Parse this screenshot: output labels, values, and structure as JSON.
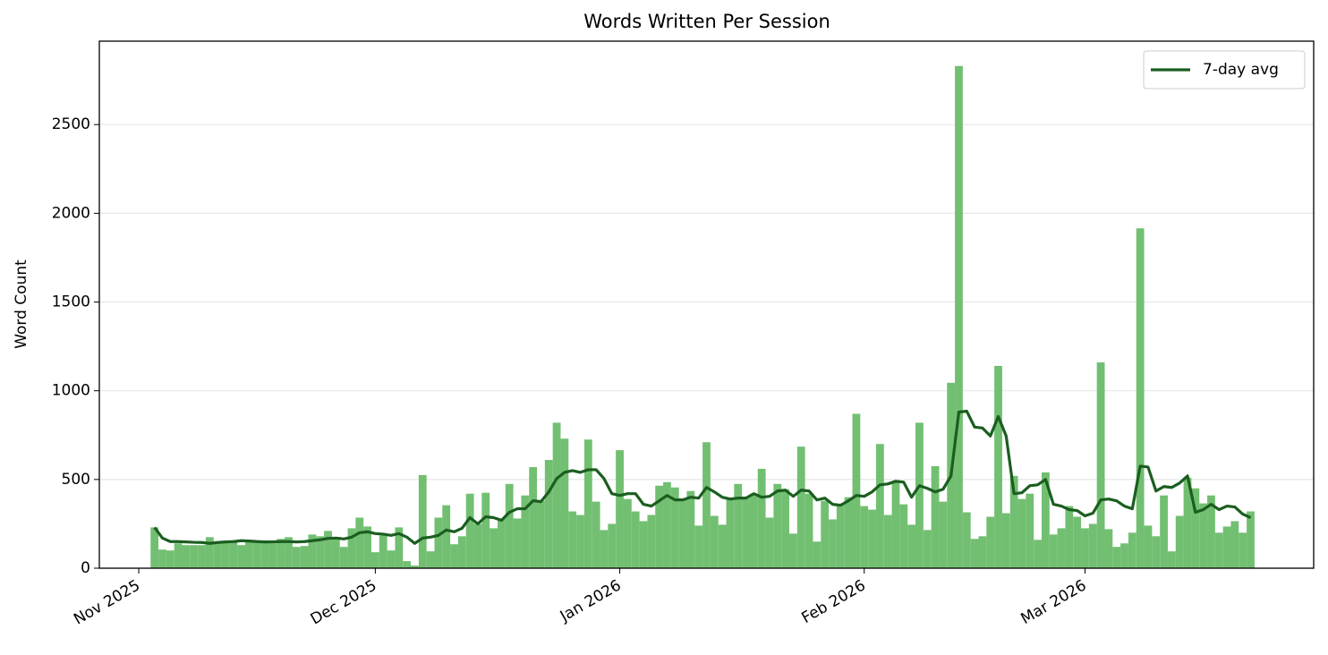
{
  "chart_data": {
    "type": "bar",
    "title": "Words Written Per Session",
    "ylabel": "Word Count",
    "x": [
      "2025-11-03",
      "2025-11-04",
      "2025-11-05",
      "2025-11-06",
      "2025-11-07",
      "2025-11-08",
      "2025-11-09",
      "2025-11-10",
      "2025-11-11",
      "2025-11-12",
      "2025-11-13",
      "2025-11-14",
      "2025-11-15",
      "2025-11-16",
      "2025-11-17",
      "2025-11-18",
      "2025-11-19",
      "2025-11-20",
      "2025-11-21",
      "2025-11-22",
      "2025-11-23",
      "2025-11-24",
      "2025-11-25",
      "2025-11-26",
      "2025-11-27",
      "2025-11-28",
      "2025-11-29",
      "2025-11-30",
      "2025-12-01",
      "2025-12-02",
      "2025-12-03",
      "2025-12-04",
      "2025-12-05",
      "2025-12-06",
      "2025-12-07",
      "2025-12-08",
      "2025-12-09",
      "2025-12-10",
      "2025-12-11",
      "2025-12-12",
      "2025-12-13",
      "2025-12-14",
      "2025-12-15",
      "2025-12-16",
      "2025-12-17",
      "2025-12-18",
      "2025-12-19",
      "2025-12-20",
      "2025-12-21",
      "2025-12-22",
      "2025-12-23",
      "2025-12-24",
      "2025-12-25",
      "2025-12-26",
      "2025-12-27",
      "2025-12-28",
      "2025-12-29",
      "2025-12-30",
      "2025-12-31",
      "2026-01-01",
      "2026-01-02",
      "2026-01-03",
      "2026-01-04",
      "2026-01-05",
      "2026-01-06",
      "2026-01-07",
      "2026-01-08",
      "2026-01-09",
      "2026-01-10",
      "2026-01-11",
      "2026-01-12",
      "2026-01-13",
      "2026-01-14",
      "2026-01-15",
      "2026-01-16",
      "2026-01-17",
      "2026-01-18",
      "2026-01-19",
      "2026-01-20",
      "2026-01-21",
      "2026-01-22",
      "2026-01-23",
      "2026-01-24",
      "2026-01-25",
      "2026-01-26",
      "2026-01-27",
      "2026-01-28",
      "2026-01-29",
      "2026-01-30",
      "2026-01-31",
      "2026-02-01",
      "2026-02-02",
      "2026-02-03",
      "2026-02-04",
      "2026-02-05",
      "2026-02-06",
      "2026-02-07",
      "2026-02-08",
      "2026-02-09",
      "2026-02-10",
      "2026-02-11",
      "2026-02-12",
      "2026-02-13",
      "2026-02-14",
      "2026-02-15",
      "2026-02-16",
      "2026-02-17",
      "2026-02-18",
      "2026-02-19",
      "2026-02-20",
      "2026-02-21",
      "2026-02-22",
      "2026-02-23",
      "2026-02-24",
      "2026-02-25",
      "2026-02-26",
      "2026-02-27",
      "2026-02-28",
      "2026-03-01",
      "2026-03-02",
      "2026-03-03",
      "2026-03-04",
      "2026-03-05",
      "2026-03-06",
      "2026-03-07",
      "2026-03-08",
      "2026-03-09",
      "2026-03-10",
      "2026-03-11",
      "2026-03-12",
      "2026-03-13",
      "2026-03-14",
      "2026-03-15",
      "2026-03-16",
      "2026-03-17",
      "2026-03-18",
      "2026-03-19",
      "2026-03-20",
      "2026-03-21",
      "2026-03-22"
    ],
    "series": [
      {
        "type": "bar",
        "color": "#72bf72",
        "values": [
          230,
          105,
          100,
          140,
          130,
          130,
          130,
          175,
          150,
          145,
          150,
          130,
          155,
          150,
          145,
          140,
          165,
          175,
          120,
          125,
          190,
          180,
          210,
          175,
          120,
          225,
          285,
          235,
          90,
          185,
          100,
          230,
          40,
          15,
          525,
          95,
          285,
          355,
          135,
          180,
          420,
          250,
          425,
          225,
          280,
          475,
          280,
          410,
          570,
          380,
          610,
          820,
          730,
          320,
          300,
          725,
          375,
          215,
          250,
          665,
          390,
          320,
          265,
          300,
          465,
          485,
          455,
          390,
          435,
          240,
          710,
          295,
          245,
          395,
          475,
          395,
          420,
          560,
          285,
          475,
          445,
          195,
          685,
          420,
          150,
          380,
          275,
          360,
          400,
          870,
          350,
          330,
          700,
          300,
          490,
          360,
          245,
          820,
          215,
          575,
          375,
          1045,
          2830,
          315,
          165,
          180,
          290,
          1140,
          310,
          520,
          390,
          420,
          160,
          540,
          190,
          225,
          350,
          290,
          225,
          250,
          1160,
          220,
          120,
          140,
          200,
          1915,
          240,
          180,
          410,
          95,
          295,
          510,
          450,
          365,
          410,
          200,
          235,
          265,
          200,
          320
        ]
      },
      {
        "type": "line",
        "name": "7-day avg",
        "color": "#1b5e20",
        "values": [
          230,
          170,
          150,
          150,
          148,
          146,
          145,
          140,
          145,
          148,
          150,
          155,
          153,
          150,
          148,
          148,
          150,
          150,
          148,
          150,
          155,
          160,
          168,
          170,
          165,
          175,
          200,
          205,
          195,
          192,
          185,
          195,
          175,
          140,
          170,
          175,
          185,
          215,
          205,
          225,
          285,
          250,
          290,
          285,
          270,
          315,
          335,
          335,
          380,
          375,
          430,
          505,
          540,
          550,
          540,
          555,
          555,
          505,
          420,
          410,
          420,
          420,
          360,
          350,
          380,
          410,
          385,
          385,
          400,
          395,
          455,
          430,
          400,
          390,
          395,
          395,
          420,
          400,
          405,
          435,
          440,
          405,
          440,
          435,
          385,
          395,
          360,
          355,
          380,
          410,
          405,
          430,
          470,
          475,
          490,
          485,
          400,
          465,
          450,
          430,
          445,
          520,
          880,
          885,
          795,
          790,
          745,
          855,
          745,
          420,
          425,
          465,
          470,
          500,
          360,
          350,
          330,
          325,
          295,
          310,
          385,
          390,
          380,
          350,
          335,
          575,
          570,
          435,
          460,
          455,
          480,
          520,
          315,
          330,
          360,
          330,
          350,
          345,
          305,
          285
        ]
      }
    ],
    "xlim": [
      "2025-10-27",
      "2026-03-30"
    ],
    "xticks": [
      {
        "value": "2025-11-01",
        "label": "Nov 2025"
      },
      {
        "value": "2025-12-01",
        "label": "Dec 2025"
      },
      {
        "value": "2026-01-01",
        "label": "Jan 2026"
      },
      {
        "value": "2026-02-01",
        "label": "Feb 2026"
      },
      {
        "value": "2026-03-01",
        "label": "Mar 2026"
      }
    ],
    "ylim": [
      0,
      2970
    ],
    "yticks": [
      0,
      500,
      1000,
      1500,
      2000,
      2500
    ],
    "grid": true,
    "legend": "upper right"
  }
}
